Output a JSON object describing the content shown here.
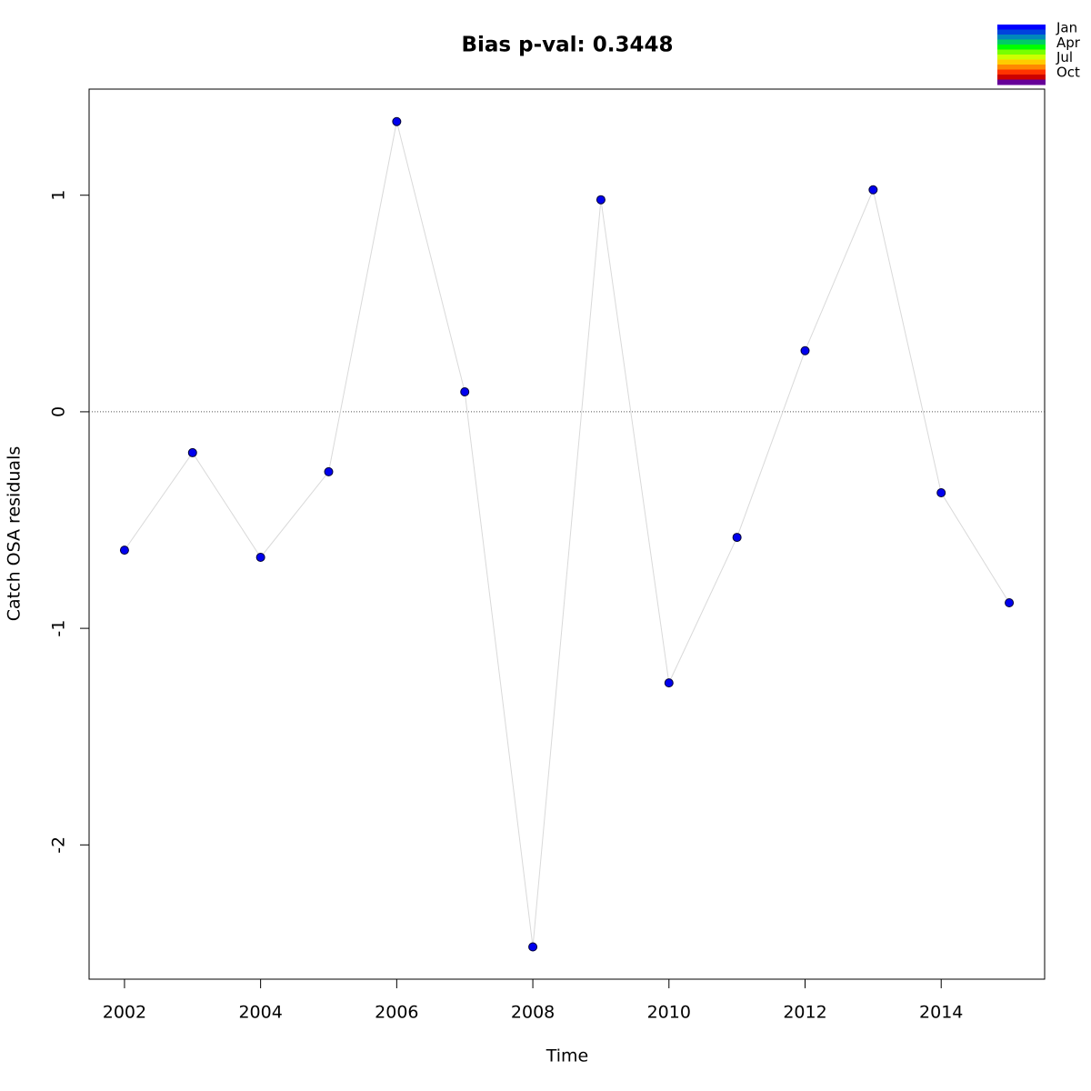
{
  "chart_data": {
    "type": "line",
    "title": "Bias p-val: 0.3448",
    "title_color": "#228b22",
    "x_label": "Time",
    "y_label": "Catch OSA residuals",
    "x": [
      2002,
      2003,
      2004,
      2005,
      2006,
      2007,
      2008,
      2009,
      2010,
      2011,
      2012,
      2013,
      2014,
      2015
    ],
    "series": [
      {
        "name": "Catch OSA residuals",
        "color": "#0000ee",
        "line_color": "#d9d9d9",
        "values": [
          -0.639,
          -0.189,
          -0.672,
          -0.277,
          1.34,
          0.092,
          -2.471,
          0.979,
          -1.252,
          -0.58,
          0.282,
          1.025,
          -0.374,
          -0.882
        ]
      }
    ],
    "xlim": [
      2001.48,
      2015.52
    ],
    "ylim": [
      -2.62,
      1.49
    ],
    "xticks": [
      2002,
      2004,
      2006,
      2008,
      2010,
      2012,
      2014
    ],
    "yticks": [
      -2,
      -1,
      0,
      1
    ],
    "hline": 0,
    "legend": {
      "labels": [
        "Jan",
        "Apr",
        "Jul",
        "Oct"
      ],
      "colors": [
        "#0000ff",
        "#0044dd",
        "#0088bb",
        "#00cc66",
        "#00ff00",
        "#77ff00",
        "#ccff00",
        "#ffcc00",
        "#ff8800",
        "#ff3300",
        "#cc0000",
        "#660099"
      ]
    }
  }
}
